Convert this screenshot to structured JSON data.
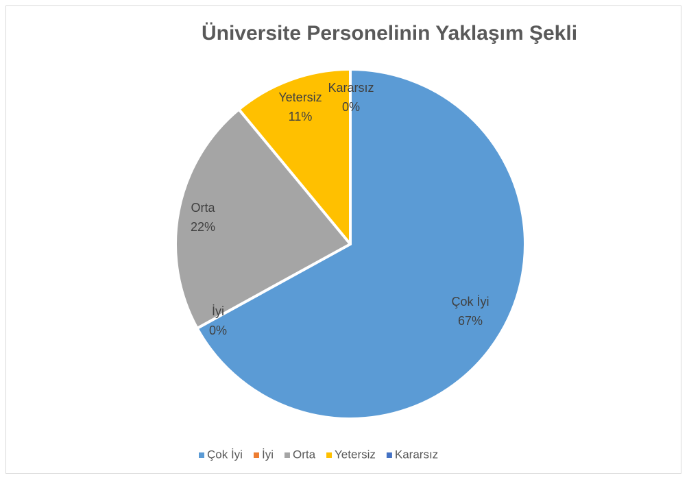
{
  "chart_data": {
    "type": "pie",
    "title": "Üniversite Personelinin Yaklaşım Şekli",
    "categories": [
      "Çok İyi",
      "İyi",
      "Orta",
      "Yetersiz",
      "Kararsız"
    ],
    "values": [
      67,
      0,
      22,
      11,
      0
    ],
    "value_labels": [
      "67%",
      "0%",
      "22%",
      "11%",
      "0%"
    ],
    "colors": [
      "#5b9bd5",
      "#ed7d31",
      "#a5a5a5",
      "#ffc000",
      "#4472c4"
    ],
    "legend": "bottom"
  }
}
